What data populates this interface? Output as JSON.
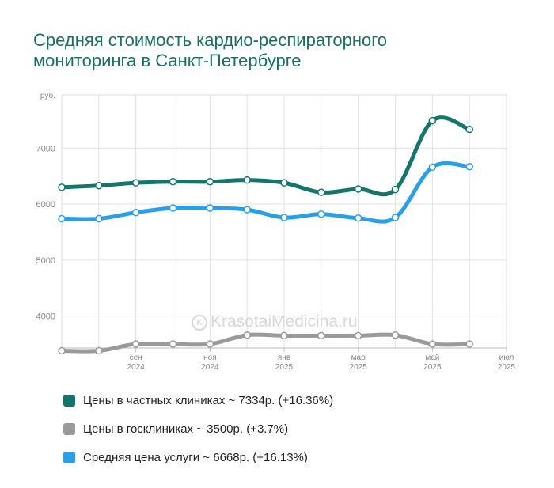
{
  "title_lines": [
    "Средняя стоимость кардио-респираторного",
    "мониторинга в Санкт-Петербурге"
  ],
  "watermark": "KrasotaiMedicina.ru",
  "chart_data": {
    "type": "line",
    "title": "Средняя стоимость кардио-респираторного мониторинга в Санкт-Петербурге",
    "ylabel": "руб.",
    "ylim": [
      3430,
      7950
    ],
    "yticks": [
      4000,
      5000,
      6000,
      7000
    ],
    "grid": true,
    "legend_position": "bottom",
    "x": [
      "2024-07",
      "2024-08",
      "2024-09",
      "2024-10",
      "2024-11",
      "2024-12",
      "2025-01",
      "2025-02",
      "2025-03",
      "2025-04",
      "2025-05",
      "2025-06",
      "2025-07"
    ],
    "x_tick_labels": [
      {
        "x": "2024-09",
        "line1": "сен",
        "line2": "2024"
      },
      {
        "x": "2024-11",
        "line1": "ноя",
        "line2": "2024"
      },
      {
        "x": "2025-01",
        "line1": "янв",
        "line2": "2025"
      },
      {
        "x": "2025-03",
        "line1": "мар",
        "line2": "2025"
      },
      {
        "x": "2025-05",
        "line1": "май",
        "line2": "2025"
      },
      {
        "x": "2025-07",
        "line1": "июл",
        "line2": "2025"
      }
    ],
    "series": [
      {
        "name": "Цены в частных клиниках ~ 7334р. (+16.36%)",
        "color": "#14766a",
        "values": [
          6300,
          6330,
          6380,
          6400,
          6400,
          6430,
          6380,
          6210,
          6270,
          6260,
          7490,
          7334,
          null
        ]
      },
      {
        "name": "Цены в госклиниках ~ 3500р. (+3.7%)",
        "color": "#9a9a9a",
        "values": [
          3380,
          3380,
          3500,
          3500,
          3500,
          3660,
          3650,
          3650,
          3650,
          3660,
          3500,
          3500,
          null
        ]
      },
      {
        "name": "Средняя цена услуги ~ 6668р. (+16.13%)",
        "color": "#2b9fe6",
        "values": [
          5740,
          5740,
          5850,
          5930,
          5930,
          5900,
          5760,
          5820,
          5750,
          5760,
          6660,
          6668,
          null
        ]
      }
    ]
  }
}
